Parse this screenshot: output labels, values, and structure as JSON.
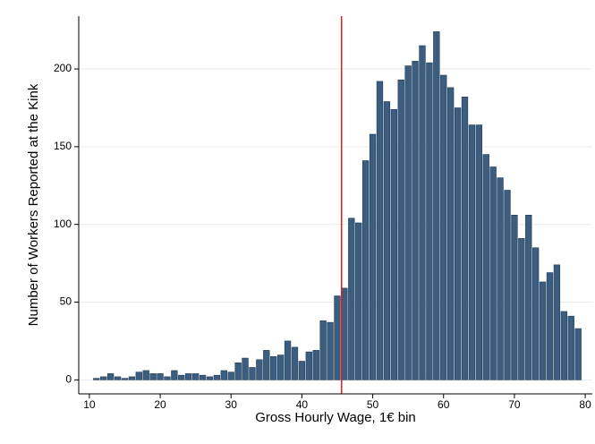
{
  "chart_data": {
    "type": "histogram",
    "xlabel": "Gross Hourly Wage, 1€ bin",
    "ylabel": "Number of Workers Reported at the Kink",
    "bins": [
      10.5,
      11.5,
      12.5,
      13.5,
      14.5,
      15.5,
      16.5,
      17.5,
      18.5,
      19.5,
      20.5,
      21.5,
      22.5,
      23.5,
      24.5,
      25.5,
      26.5,
      27.5,
      28.5,
      29.5,
      30.5,
      31.5,
      32.5,
      33.5,
      34.5,
      35.5,
      36.5,
      37.5,
      38.5,
      39.5,
      40.5,
      41.5,
      42.5,
      43.5,
      44.5,
      45.5,
      46.5,
      47.5,
      48.5,
      49.5,
      50.5,
      51.5,
      52.5,
      53.5,
      54.5,
      55.5,
      56.5,
      57.5,
      58.5,
      59.5,
      60.5,
      61.5,
      62.5,
      63.5,
      64.5,
      65.5,
      66.5,
      67.5,
      68.5,
      69.5,
      70.5,
      71.5,
      72.5,
      73.5,
      74.5,
      75.5,
      76.5,
      77.5,
      78.5,
      79.5
    ],
    "values": [
      1,
      2,
      4,
      2,
      1,
      2,
      5,
      6,
      4,
      4,
      2,
      6,
      3,
      4,
      4,
      3,
      2,
      3,
      6,
      5,
      11,
      14,
      8,
      13,
      19,
      15,
      16,
      25,
      21,
      12,
      18,
      19,
      38,
      37,
      54,
      59,
      104,
      101,
      141,
      158,
      192,
      179,
      174,
      193,
      202,
      205,
      215,
      204,
      224,
      196,
      188,
      175,
      182,
      164,
      164,
      145,
      137,
      130,
      122,
      106,
      91,
      106,
      85,
      63,
      69,
      74,
      44,
      41,
      33
    ],
    "color": "#3b5e80",
    "kink": 45.6,
    "kink_color": "#e41a1c",
    "xlim": [
      8.5,
      81
    ],
    "xticks": [
      10,
      20,
      30,
      40,
      50,
      60,
      70,
      80
    ],
    "ylim": [
      -9,
      234
    ],
    "yticks": [
      0,
      50,
      100,
      150,
      200
    ],
    "grid": true
  }
}
